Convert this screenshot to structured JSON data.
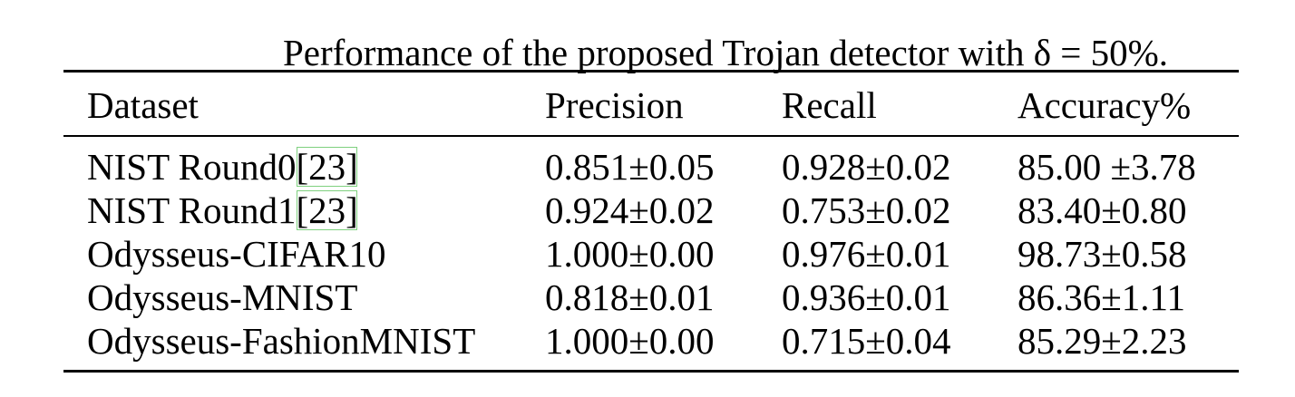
{
  "caption": "Performance of the proposed Trojan detector with δ = 50%.",
  "table": {
    "header": [
      "Dataset",
      "Precision",
      "Recall",
      "Accuracy%"
    ],
    "rows": [
      {
        "dataset": "NIST Round0",
        "cite": "[23]",
        "cells": [
          "0.851±0.05",
          "0.928±0.02",
          "85.00 ±3.78"
        ]
      },
      {
        "dataset": "NIST Round1",
        "cite": "[23]",
        "cells": [
          "0.924±0.02",
          "0.753±0.02",
          "83.40±0.80"
        ]
      },
      {
        "dataset": "Odysseus-CIFAR10",
        "cells": [
          "1.000±0.00",
          "0.976±0.01",
          "98.73±0.58"
        ]
      },
      {
        "dataset": "Odysseus-MNIST",
        "cells": [
          "0.818±0.01",
          "0.936±0.01",
          "86.36±1.11"
        ]
      },
      {
        "dataset": "Odysseus-FashionMNIST",
        "cells": [
          "1.000±0.00",
          "0.715±0.04",
          "85.29±2.23"
        ]
      }
    ]
  }
}
